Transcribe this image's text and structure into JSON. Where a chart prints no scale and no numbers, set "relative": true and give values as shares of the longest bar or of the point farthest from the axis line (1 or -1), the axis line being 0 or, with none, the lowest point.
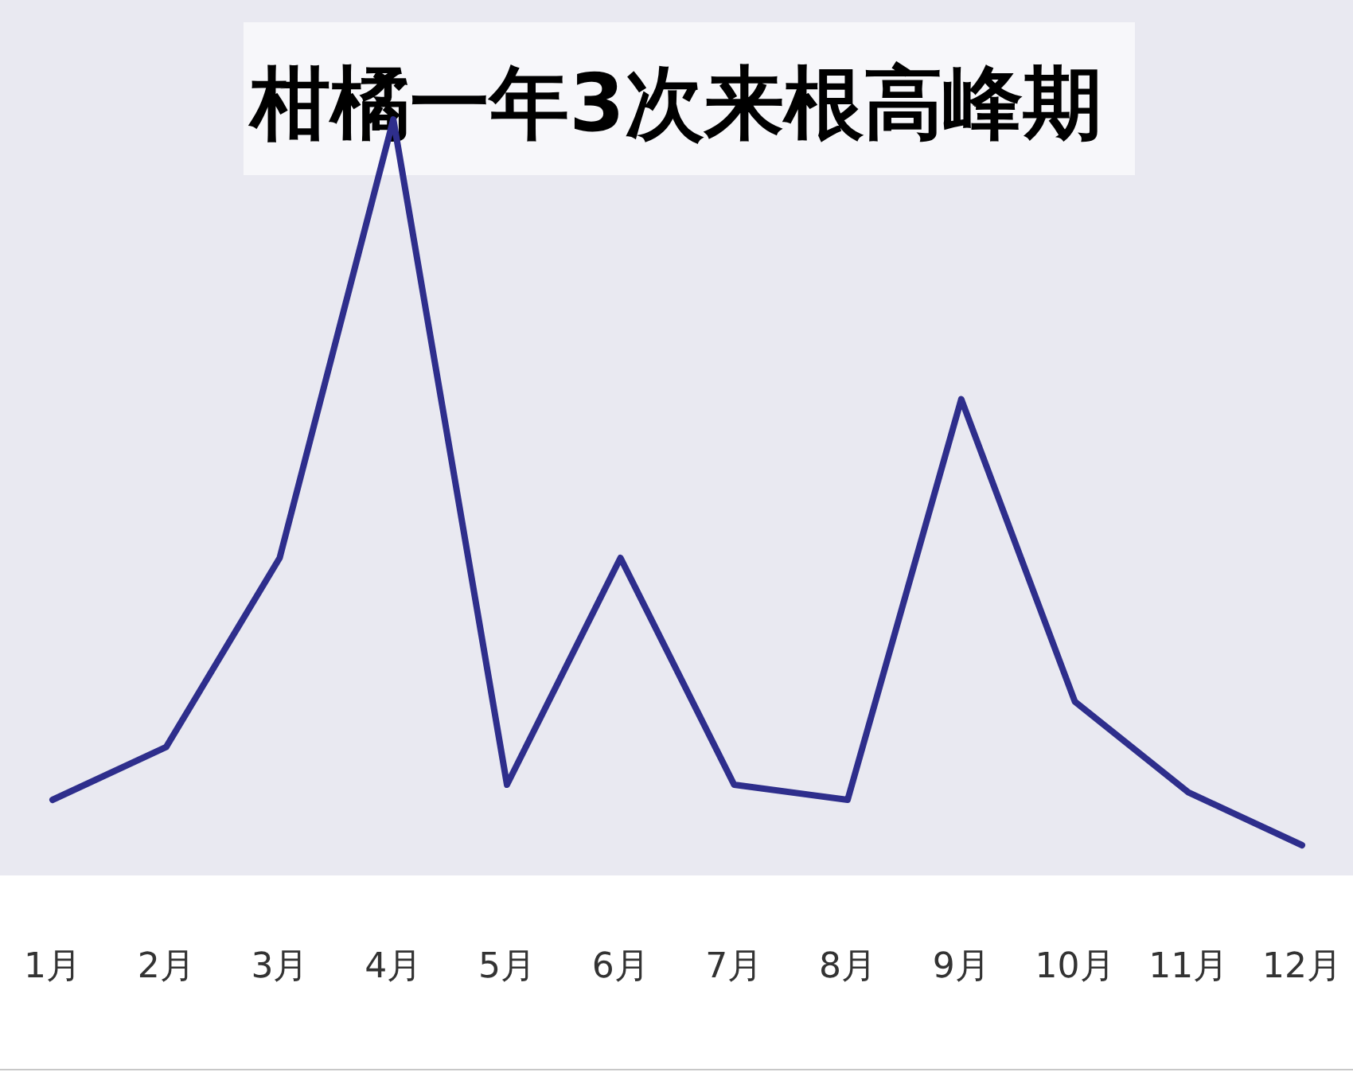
{
  "chart_data": {
    "type": "line",
    "title": "柑橘一年3次来根高峰期",
    "relative": true,
    "color": "#2e2e8c",
    "categories": [
      "1月",
      "2月",
      "3月",
      "4月",
      "5月",
      "6月",
      "7月",
      "8月",
      "9月",
      "10月",
      "11月",
      "12月"
    ],
    "values": [
      0.1,
      0.17,
      0.42,
      1,
      0.12,
      0.42,
      0.12,
      0.1,
      0.63,
      0.23,
      0.11,
      0.04
    ]
  }
}
